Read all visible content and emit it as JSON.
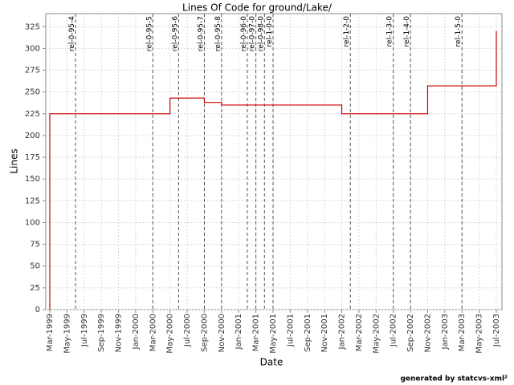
{
  "chart_data": {
    "type": "line",
    "step": true,
    "title": "Lines Of Code for ground/Lake/",
    "x_label": "Date",
    "y_label": "Lines",
    "footer": "generated by statcvs-xml²",
    "x": [
      "1999-03",
      "1999-03",
      "2000-05",
      "2000-09",
      "2000-11",
      "2002-01",
      "2002-11",
      "2003-07"
    ],
    "values": [
      0,
      225,
      243,
      238,
      235,
      225,
      257,
      320
    ],
    "color": "#cc0000",
    "xlim": [
      "1999-03",
      "2003-07"
    ],
    "xticks": [
      {
        "value": "1999-03",
        "label": "Mar-1999"
      },
      {
        "value": "1999-05",
        "label": "May-1999"
      },
      {
        "value": "1999-07",
        "label": "Jul-1999"
      },
      {
        "value": "1999-09",
        "label": "Sep-1999"
      },
      {
        "value": "1999-11",
        "label": "Nov-1999"
      },
      {
        "value": "2000-01",
        "label": "Jan-2000"
      },
      {
        "value": "2000-03",
        "label": "Mar-2000"
      },
      {
        "value": "2000-05",
        "label": "May-2000"
      },
      {
        "value": "2000-07",
        "label": "Jul-2000"
      },
      {
        "value": "2000-09",
        "label": "Sep-2000"
      },
      {
        "value": "2000-11",
        "label": "Nov-2000"
      },
      {
        "value": "2001-01",
        "label": "Jan-2001"
      },
      {
        "value": "2001-03",
        "label": "Mar-2001"
      },
      {
        "value": "2001-05",
        "label": "May-2001"
      },
      {
        "value": "2001-07",
        "label": "Jul-2001"
      },
      {
        "value": "2001-09",
        "label": "Sep-2001"
      },
      {
        "value": "2001-11",
        "label": "Nov-2001"
      },
      {
        "value": "2002-01",
        "label": "Jan-2002"
      },
      {
        "value": "2002-03",
        "label": "Mar-2002"
      },
      {
        "value": "2002-05",
        "label": "May-2002"
      },
      {
        "value": "2002-07",
        "label": "Jul-2002"
      },
      {
        "value": "2002-09",
        "label": "Sep-2002"
      },
      {
        "value": "2002-11",
        "label": "Nov-2002"
      },
      {
        "value": "2003-01",
        "label": "Jan-2003"
      },
      {
        "value": "2003-03",
        "label": "Mar-2003"
      },
      {
        "value": "2003-05",
        "label": "May-2003"
      },
      {
        "value": "2003-07",
        "label": "Jul-2003"
      }
    ],
    "ylim": [
      0,
      340
    ],
    "yticks": [
      0,
      25,
      50,
      75,
      100,
      125,
      150,
      175,
      200,
      225,
      250,
      275,
      300,
      325
    ],
    "grid": true,
    "releases": [
      {
        "x": "1999-06",
        "label": "rel-0-95-4"
      },
      {
        "x": "2000-03",
        "label": "rel-0-95-5"
      },
      {
        "x": "2000-06",
        "label": "rel-0-95-6"
      },
      {
        "x": "2000-09",
        "label": "rel-0-95-7"
      },
      {
        "x": "2000-11",
        "label": "rel-0-95-8"
      },
      {
        "x": "2001-02",
        "label": "rel-0-96-0"
      },
      {
        "x": "2001-03",
        "label": "rel-0-97-0"
      },
      {
        "x": "2001-04",
        "label": "rel-0-98-0"
      },
      {
        "x": "2001-05",
        "label": "rel-1-0-0"
      },
      {
        "x": "2002-02",
        "label": "rel-1-2-0"
      },
      {
        "x": "2002-07",
        "label": "rel-1-3-0"
      },
      {
        "x": "2002-09",
        "label": "rel-1-4-0"
      },
      {
        "x": "2003-03",
        "label": "rel-1-5-0"
      }
    ]
  }
}
